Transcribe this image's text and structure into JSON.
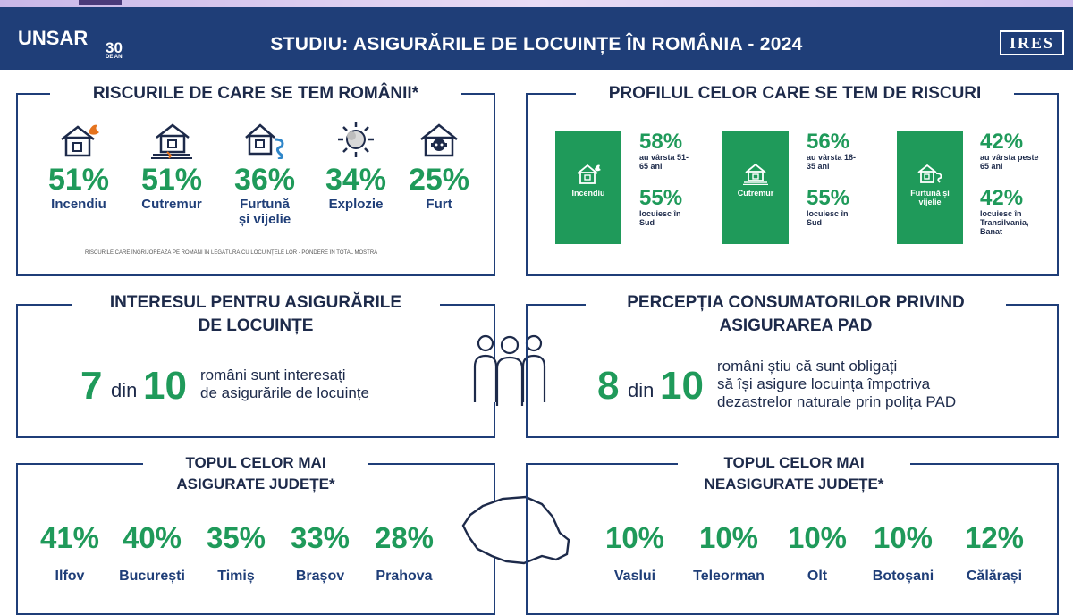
{
  "header": {
    "logo": "UNSAR",
    "logo_badge": "30",
    "logo_badge_sub": "DE ANI",
    "title": "STUDIU: ASIGURĂRILE DE LOCUINȚE ÎN ROMÂNIA - 2024",
    "partner_logo": "IRES"
  },
  "risks": {
    "title": "RISCURILE DE CARE SE TEM ROMÂNII*",
    "items": [
      {
        "pct": "51%",
        "label": "Incendiu",
        "icon": "house-fire-icon"
      },
      {
        "pct": "51%",
        "label": "Cutremur",
        "icon": "house-earthquake-icon"
      },
      {
        "pct": "36%",
        "label": "Furtună și vijelie",
        "icon": "house-storm-icon"
      },
      {
        "pct": "34%",
        "label": "Explozie",
        "icon": "explosion-icon"
      },
      {
        "pct": "25%",
        "label": "Furt",
        "icon": "house-thief-icon"
      }
    ],
    "footnote": "RISCURILE CARE ÎNGRIJOREAZĂ PE ROMÂNI ÎN LEGĂTURĂ CU LOCUINȚELE LOR - PONDERE ÎN TOTAL MOSTRĂ"
  },
  "profile": {
    "title": "PROFILUL CELOR CARE SE TEM DE RISCURI",
    "groups": [
      {
        "label": "Incendiu",
        "icon": "house-fire-icon",
        "stat1_pct": "58%",
        "stat1_text": "au vârsta 51-65 ani",
        "stat2_pct": "55%",
        "stat2_text": "locuiesc în Sud"
      },
      {
        "label": "Cutremur",
        "icon": "house-earthquake-icon",
        "stat1_pct": "56%",
        "stat1_text": "au vârsta 18-35 ani",
        "stat2_pct": "55%",
        "stat2_text": "locuiesc în Sud"
      },
      {
        "label": "Furtună și vijelie",
        "icon": "house-storm-icon",
        "stat1_pct": "42%",
        "stat1_text": "au vârsta peste 65 ani",
        "stat2_pct": "42%",
        "stat2_text": "locuiesc în Transilvania, Banat"
      }
    ]
  },
  "interest": {
    "title_line1": "INTERESUL PENTRU ASIGURĂRILE",
    "title_line2": "DE LOCUINȚE",
    "num": "7",
    "din": "din",
    "den": "10",
    "desc_line1": "români sunt interesați",
    "desc_line2": "de asigurările de locuințe"
  },
  "pad": {
    "title_line1": "PERCEPȚIA CONSUMATORILOR PRIVIND",
    "title_line2": "ASIGURAREA PAD",
    "num": "8",
    "din": "din",
    "den": "10",
    "desc_line1": "români știu că sunt obligați",
    "desc_line2": "să își asigure locuința împotriva",
    "desc_line3": "dezastrelor naturale prin polița PAD"
  },
  "insured": {
    "title_line1": "TOPUL CELOR MAI",
    "title_line2": "ASIGURATE JUDEȚE*",
    "items": [
      {
        "pct": "41%",
        "label": "Ilfov"
      },
      {
        "pct": "40%",
        "label": "București"
      },
      {
        "pct": "35%",
        "label": "Timiș"
      },
      {
        "pct": "33%",
        "label": "Brașov"
      },
      {
        "pct": "28%",
        "label": "Prahova"
      }
    ]
  },
  "uninsured": {
    "title_line1": "TOPUL CELOR MAI",
    "title_line2": "NEASIGURATE JUDEȚE*",
    "items": [
      {
        "pct": "10%",
        "label": "Vaslui"
      },
      {
        "pct": "10%",
        "label": "Teleorman"
      },
      {
        "pct": "10%",
        "label": "Olt"
      },
      {
        "pct": "10%",
        "label": "Botoșani"
      },
      {
        "pct": "12%",
        "label": "Călărași"
      }
    ]
  },
  "colors": {
    "navy": "#1f3e78",
    "green": "#1f9a5a",
    "text": "#1d2a4a"
  }
}
